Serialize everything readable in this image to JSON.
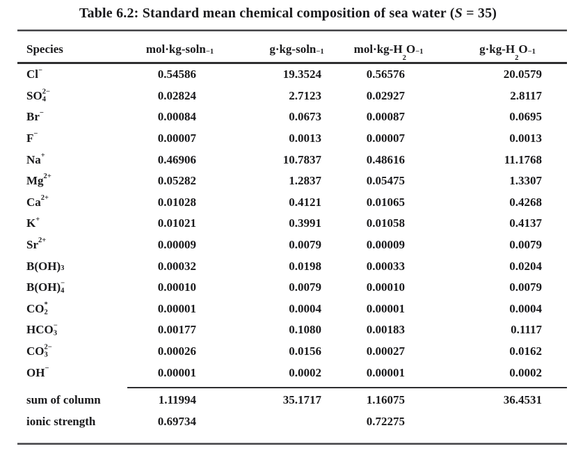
{
  "title": {
    "pre": "Table 6.2: Standard mean chemical composition of sea water (",
    "var": "S",
    "post": " = 35)"
  },
  "table": {
    "columns": [
      {
        "segs": [
          {
            "t": "Species"
          }
        ]
      },
      {
        "segs": [
          {
            "t": "mol·kg-soln"
          },
          {
            "sup": "−1"
          }
        ]
      },
      {
        "segs": [
          {
            "t": "g·kg-soln"
          },
          {
            "sup": "−1"
          }
        ]
      },
      {
        "segs": [
          {
            "t": "mol·kg-H"
          },
          {
            "sub": "2"
          },
          {
            "t": "O"
          },
          {
            "sup": "−1"
          }
        ]
      },
      {
        "segs": [
          {
            "t": "g·kg-H"
          },
          {
            "sub": "2"
          },
          {
            "t": "O"
          },
          {
            "sup": "−1"
          }
        ]
      }
    ],
    "rows": [
      {
        "species": [
          {
            "t": "Cl"
          },
          {
            "sup": "−"
          }
        ],
        "values": [
          "0.54586",
          "19.3524",
          "0.56576",
          "20.0579"
        ]
      },
      {
        "species": [
          {
            "t": "SO"
          },
          {
            "stack": {
              "sup": "2−",
              "sub": "4"
            }
          }
        ],
        "values": [
          "0.02824",
          "2.7123",
          "0.02927",
          "2.8117"
        ]
      },
      {
        "species": [
          {
            "t": "Br"
          },
          {
            "sup": "−"
          }
        ],
        "values": [
          "0.00084",
          "0.0673",
          "0.00087",
          "0.0695"
        ]
      },
      {
        "species": [
          {
            "t": "F"
          },
          {
            "sup": "−"
          }
        ],
        "values": [
          "0.00007",
          "0.0013",
          "0.00007",
          "0.0013"
        ]
      },
      {
        "species": [
          {
            "t": "Na"
          },
          {
            "sup": "+"
          }
        ],
        "values": [
          "0.46906",
          "10.7837",
          "0.48616",
          "11.1768"
        ]
      },
      {
        "species": [
          {
            "t": "Mg"
          },
          {
            "sup": "2+"
          }
        ],
        "values": [
          "0.05282",
          "1.2837",
          "0.05475",
          "1.3307"
        ]
      },
      {
        "species": [
          {
            "t": "Ca"
          },
          {
            "sup": "2+"
          }
        ],
        "values": [
          "0.01028",
          "0.4121",
          "0.01065",
          "0.4268"
        ]
      },
      {
        "species": [
          {
            "t": "K"
          },
          {
            "sup": "+"
          }
        ],
        "values": [
          "0.01021",
          "0.3991",
          "0.01058",
          "0.4137"
        ]
      },
      {
        "species": [
          {
            "t": "Sr"
          },
          {
            "sup": "2+"
          }
        ],
        "values": [
          "0.00009",
          "0.0079",
          "0.00009",
          "0.0079"
        ]
      },
      {
        "species": [
          {
            "t": "B(OH)"
          },
          {
            "sub": "3"
          }
        ],
        "values": [
          "0.00032",
          "0.0198",
          "0.00033",
          "0.0204"
        ]
      },
      {
        "species": [
          {
            "t": "B(OH)"
          },
          {
            "stack": {
              "sup": "−",
              "sub": "4"
            }
          }
        ],
        "values": [
          "0.00010",
          "0.0079",
          "0.00010",
          "0.0079"
        ]
      },
      {
        "species": [
          {
            "t": "CO"
          },
          {
            "stack": {
              "sup": "*",
              "sub": "2"
            }
          }
        ],
        "values": [
          "0.00001",
          "0.0004",
          "0.00001",
          "0.0004"
        ]
      },
      {
        "species": [
          {
            "t": "HCO"
          },
          {
            "stack": {
              "sup": "−",
              "sub": "3"
            }
          }
        ],
        "values": [
          "0.00177",
          "0.1080",
          "0.00183",
          "0.1117"
        ]
      },
      {
        "species": [
          {
            "t": "CO"
          },
          {
            "stack": {
              "sup": "2−",
              "sub": "3"
            }
          }
        ],
        "values": [
          "0.00026",
          "0.0156",
          "0.00027",
          "0.0162"
        ]
      },
      {
        "species": [
          {
            "t": "OH"
          },
          {
            "sup": "−"
          }
        ],
        "values": [
          "0.00001",
          "0.0002",
          "0.00001",
          "0.0002"
        ]
      }
    ],
    "footer_rows": [
      {
        "label": "sum of column",
        "values": [
          "1.11994",
          "35.1717",
          "1.16075",
          "36.4531"
        ]
      },
      {
        "label": "ionic strength",
        "values": [
          "0.69734",
          "",
          "0.72275",
          ""
        ]
      }
    ]
  },
  "colors": {
    "text": "#1a1a1c",
    "rule": "#2e2e30"
  }
}
